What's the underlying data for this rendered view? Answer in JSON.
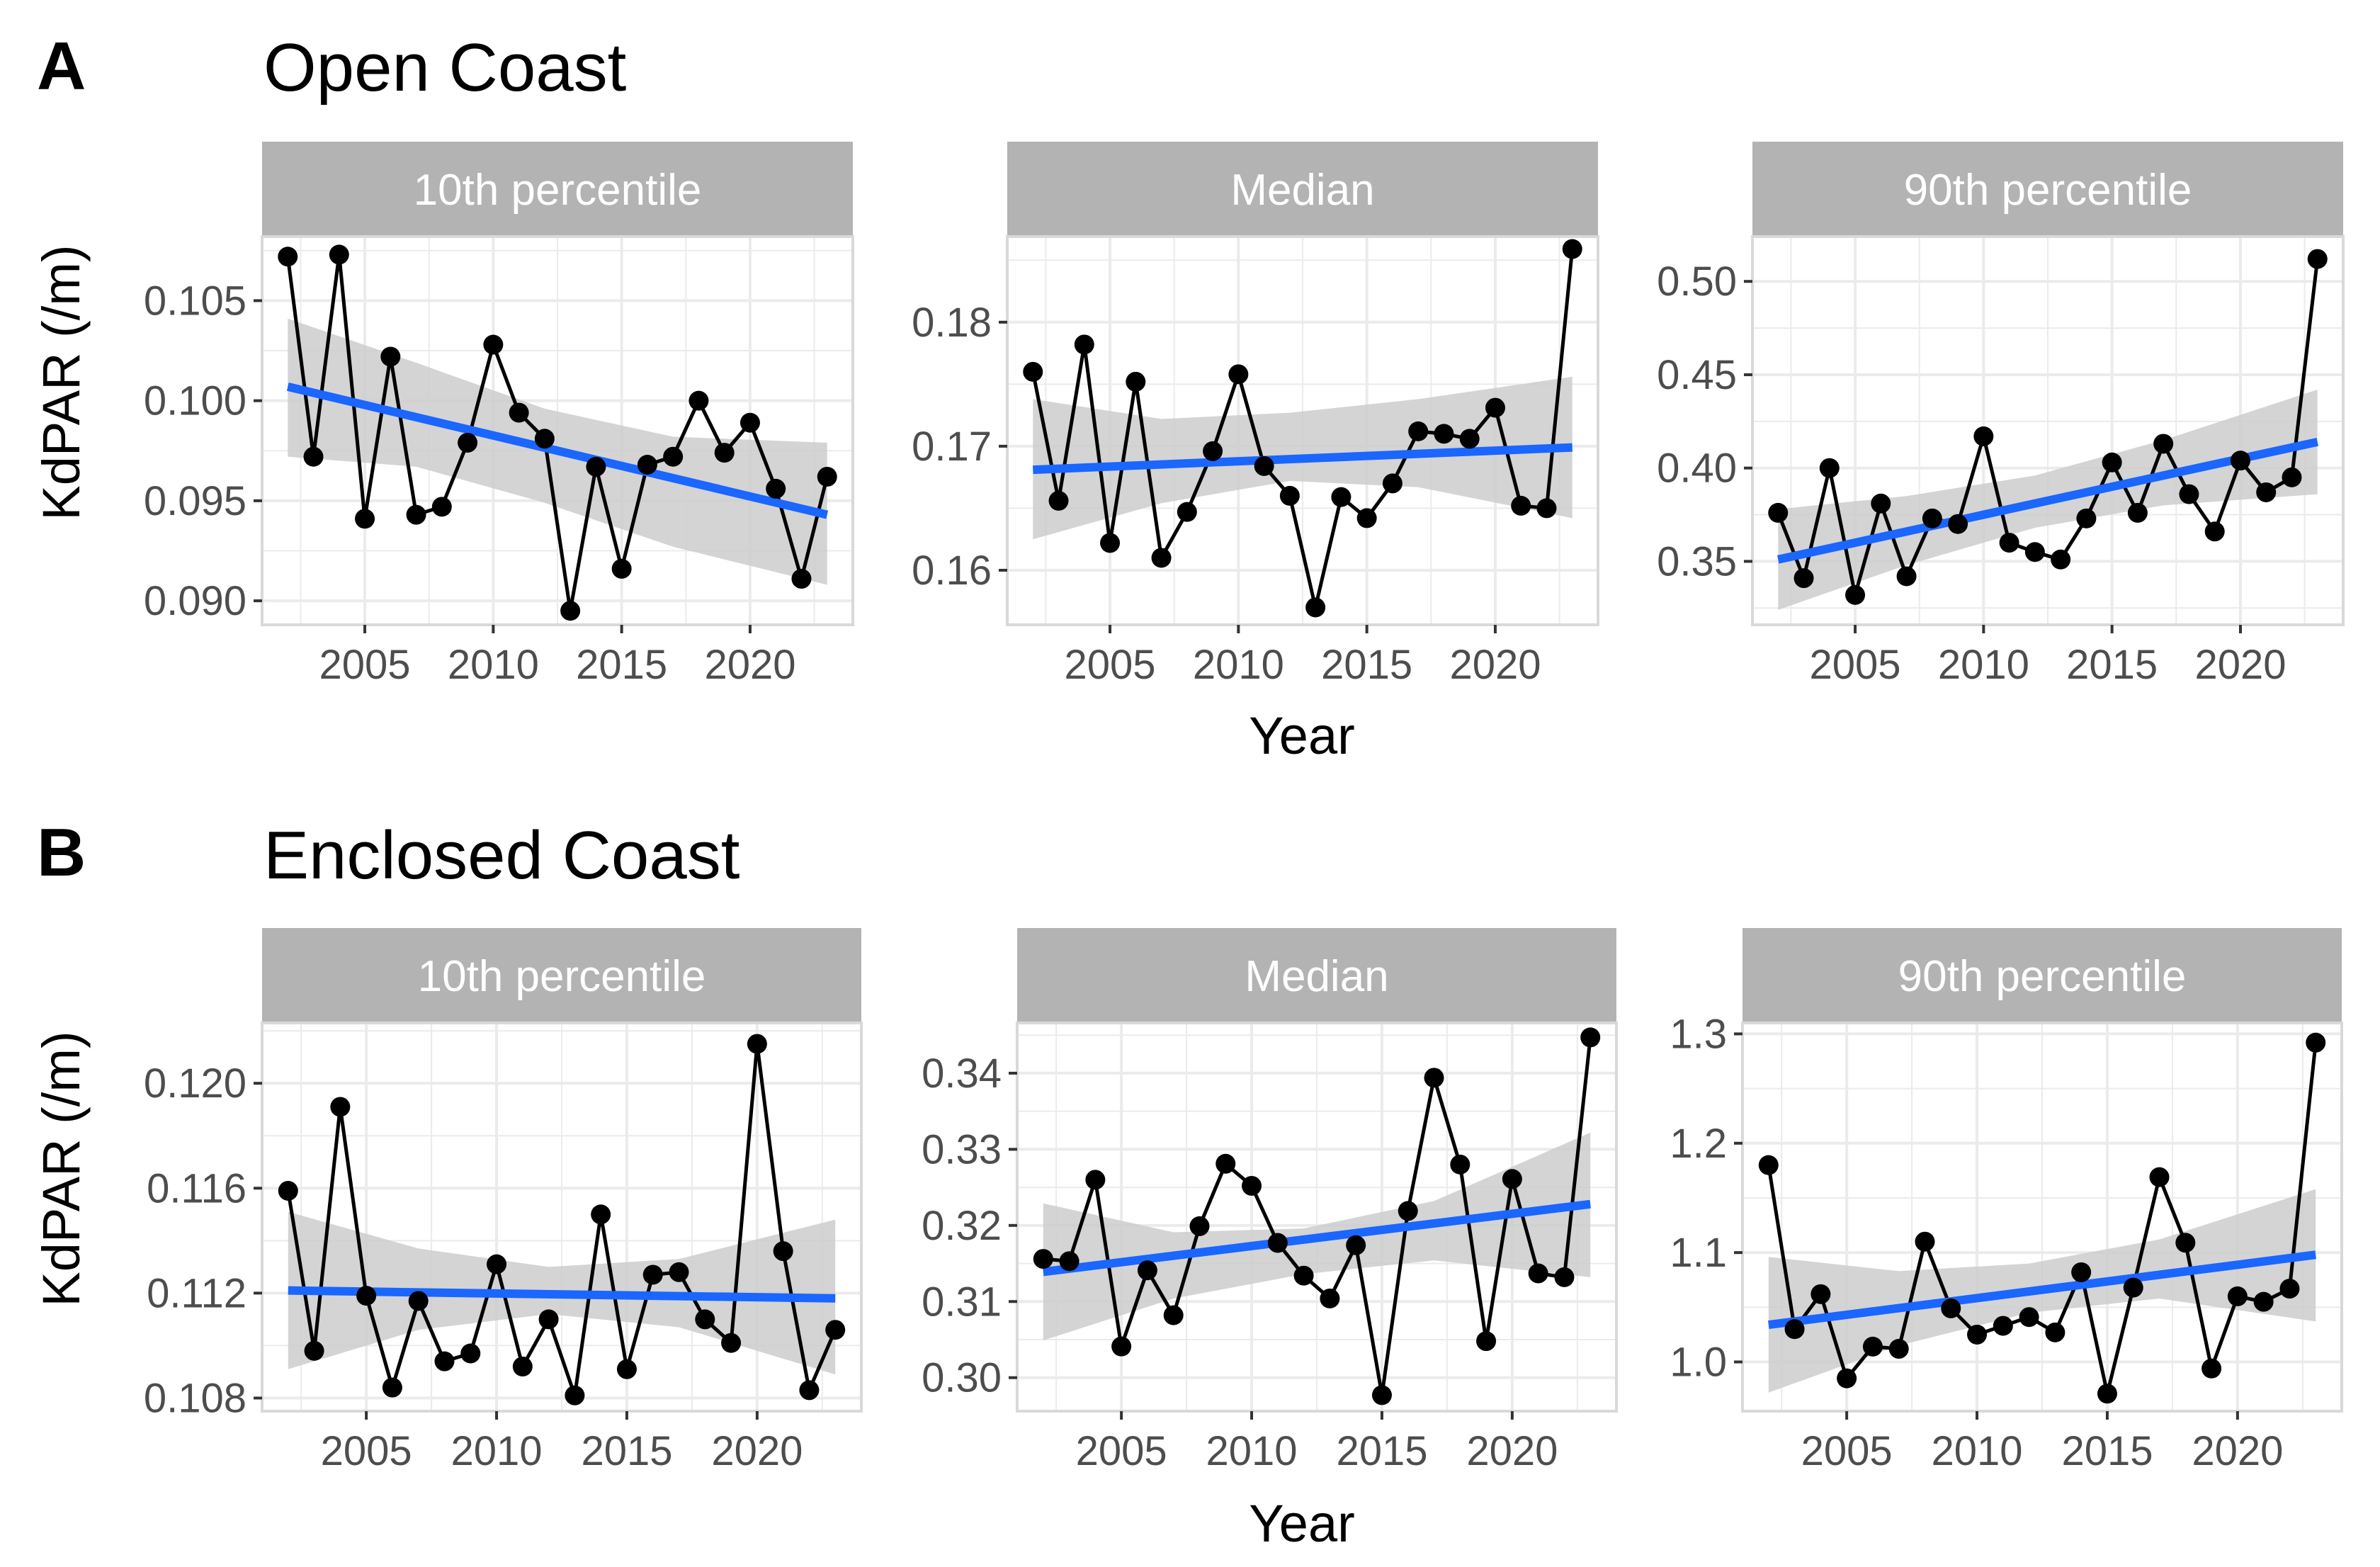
{
  "figure": {
    "y_axis_title": "KdPAR (/m)",
    "x_axis_title": "Year",
    "colors": {
      "trend": "#1a66ff",
      "ribbon": "#cccccc",
      "points": "#000000",
      "strip_bg": "#b3b3b3",
      "grid": "#ebebeb",
      "panel_border": "#d9d9d9"
    }
  },
  "chart_data": [
    {
      "section_letter": "A",
      "section_title": "Open Coast",
      "panel": "10th percentile",
      "type": "line",
      "xlabel": "",
      "ylabel": "KdPAR (/m)",
      "xlim": [
        2001,
        2024
      ],
      "ylim": [
        0.0888,
        0.1082
      ],
      "x_ticks": [
        2005,
        2010,
        2015,
        2020
      ],
      "y_ticks": [
        0.09,
        0.095,
        0.1,
        0.105
      ],
      "y_tick_labels": [
        "0.090",
        "0.095",
        "0.100",
        "0.105"
      ],
      "x": [
        2002,
        2003,
        2004,
        2005,
        2006,
        2007,
        2008,
        2009,
        2010,
        2011,
        2012,
        2013,
        2014,
        2015,
        2016,
        2017,
        2018,
        2019,
        2020,
        2021,
        2022,
        2023
      ],
      "values": [
        0.1072,
        0.0972,
        0.1073,
        0.0941,
        0.1022,
        0.0943,
        0.0947,
        0.0979,
        0.1028,
        0.0994,
        0.0981,
        0.0895,
        0.0967,
        0.0916,
        0.0968,
        0.0972,
        0.1,
        0.0974,
        0.0989,
        0.0956,
        0.0911,
        0.0962
      ],
      "trend": [
        0.1007,
        0.0943
      ],
      "ribbon_x": [
        2002,
        2007,
        2012,
        2017,
        2023
      ],
      "ribbon_lower": [
        0.0972,
        0.0967,
        0.0949,
        0.0927,
        0.0908
      ],
      "ribbon_upper": [
        0.1041,
        0.1019,
        0.0996,
        0.0982,
        0.0979
      ]
    },
    {
      "section_letter": "A",
      "section_title": "Open Coast",
      "panel": "Median",
      "type": "line",
      "xlabel": "Year",
      "ylabel": "",
      "xlim": [
        2001,
        2024
      ],
      "ylim": [
        0.1556,
        0.1869
      ],
      "x_ticks": [
        2005,
        2010,
        2015,
        2020
      ],
      "y_ticks": [
        0.16,
        0.17,
        0.18
      ],
      "y_tick_labels": [
        "0.16",
        "0.17",
        "0.18"
      ],
      "x": [
        2002,
        2003,
        2004,
        2005,
        2006,
        2007,
        2008,
        2009,
        2010,
        2011,
        2012,
        2013,
        2014,
        2015,
        2016,
        2017,
        2018,
        2019,
        2020,
        2021,
        2022,
        2023
      ],
      "values": [
        0.176,
        0.1656,
        0.1782,
        0.1622,
        0.1752,
        0.161,
        0.1647,
        0.1696,
        0.1758,
        0.1684,
        0.166,
        0.157,
        0.1659,
        0.1642,
        0.167,
        0.1712,
        0.171,
        0.1706,
        0.1731,
        0.1652,
        0.165,
        0.1859
      ],
      "trend": [
        0.1681,
        0.1699
      ],
      "ribbon_x": [
        2002,
        2007,
        2012,
        2017,
        2023
      ],
      "ribbon_lower": [
        0.1625,
        0.1654,
        0.1672,
        0.1667,
        0.1642
      ],
      "ribbon_upper": [
        0.1738,
        0.1722,
        0.1727,
        0.1738,
        0.1756
      ]
    },
    {
      "section_letter": "A",
      "section_title": "Open Coast",
      "panel": "90th percentile",
      "type": "line",
      "xlabel": "",
      "ylabel": "",
      "xlim": [
        2001,
        2024
      ],
      "ylim": [
        0.316,
        0.524
      ],
      "x_ticks": [
        2005,
        2010,
        2015,
        2020
      ],
      "y_ticks": [
        0.35,
        0.4,
        0.45,
        0.5
      ],
      "y_tick_labels": [
        "0.35",
        "0.40",
        "0.45",
        "0.50"
      ],
      "x": [
        2002,
        2003,
        2004,
        2005,
        2006,
        2007,
        2008,
        2009,
        2010,
        2011,
        2012,
        2013,
        2014,
        2015,
        2016,
        2017,
        2018,
        2019,
        2020,
        2021,
        2022,
        2023
      ],
      "values": [
        0.376,
        0.341,
        0.4,
        0.332,
        0.381,
        0.342,
        0.373,
        0.37,
        0.417,
        0.36,
        0.355,
        0.351,
        0.373,
        0.403,
        0.376,
        0.413,
        0.386,
        0.366,
        0.404,
        0.387,
        0.395,
        0.512
      ],
      "trend": [
        0.351,
        0.414
      ],
      "ribbon_x": [
        2002,
        2007,
        2012,
        2017,
        2023
      ],
      "ribbon_lower": [
        0.324,
        0.348,
        0.368,
        0.38,
        0.386
      ],
      "ribbon_upper": [
        0.378,
        0.385,
        0.396,
        0.415,
        0.442
      ]
    },
    {
      "section_letter": "B",
      "section_title": "Enclosed Coast",
      "panel": "10th percentile",
      "type": "line",
      "xlabel": "",
      "ylabel": "KdPAR (/m)",
      "xlim": [
        2001,
        2024
      ],
      "ylim": [
        0.1075,
        0.1223
      ],
      "x_ticks": [
        2005,
        2010,
        2015,
        2020
      ],
      "y_ticks": [
        0.108,
        0.112,
        0.116,
        0.12
      ],
      "y_tick_labels": [
        "0.108",
        "0.112",
        "0.116",
        "0.120"
      ],
      "x": [
        2002,
        2003,
        2004,
        2005,
        2006,
        2007,
        2008,
        2009,
        2010,
        2011,
        2012,
        2013,
        2014,
        2015,
        2016,
        2017,
        2018,
        2019,
        2020,
        2021,
        2022,
        2023
      ],
      "values": [
        0.1159,
        0.1098,
        0.1191,
        0.1119,
        0.1084,
        0.1117,
        0.1094,
        0.1097,
        0.1131,
        0.1092,
        0.111,
        0.1081,
        0.115,
        0.1091,
        0.1127,
        0.1128,
        0.111,
        0.1101,
        0.1215,
        0.1136,
        0.1083,
        0.1106
      ],
      "trend": [
        0.1121,
        0.1118
      ],
      "ribbon_x": [
        2002,
        2007,
        2012,
        2017,
        2023
      ],
      "ribbon_lower": [
        0.1091,
        0.1106,
        0.1112,
        0.1107,
        0.1089
      ],
      "ribbon_upper": [
        0.1151,
        0.1137,
        0.113,
        0.1133,
        0.1148
      ]
    },
    {
      "section_letter": "B",
      "section_title": "Enclosed Coast",
      "panel": "Median",
      "type": "line",
      "xlabel": "Year",
      "ylabel": "",
      "xlim": [
        2001,
        2024
      ],
      "ylim": [
        0.2956,
        0.3466
      ],
      "x_ticks": [
        2005,
        2010,
        2015,
        2020
      ],
      "y_ticks": [
        0.3,
        0.31,
        0.32,
        0.33,
        0.34
      ],
      "y_tick_labels": [
        "0.30",
        "0.31",
        "0.32",
        "0.33",
        "0.34"
      ],
      "x": [
        2002,
        2003,
        2004,
        2005,
        2006,
        2007,
        2008,
        2009,
        2010,
        2011,
        2012,
        2013,
        2014,
        2015,
        2016,
        2017,
        2018,
        2019,
        2020,
        2021,
        2022,
        2023
      ],
      "values": [
        0.3156,
        0.3153,
        0.326,
        0.3041,
        0.3141,
        0.3082,
        0.3199,
        0.3281,
        0.3252,
        0.3177,
        0.3134,
        0.3104,
        0.3174,
        0.2977,
        0.3219,
        0.3394,
        0.328,
        0.3048,
        0.3261,
        0.3137,
        0.3132,
        0.3447
      ],
      "trend": [
        0.3139,
        0.3228
      ],
      "ribbon_x": [
        2002,
        2007,
        2012,
        2017,
        2023
      ],
      "ribbon_lower": [
        0.3049,
        0.3104,
        0.3136,
        0.3154,
        0.3132
      ],
      "ribbon_upper": [
        0.3229,
        0.3191,
        0.3196,
        0.3232,
        0.3322
      ]
    },
    {
      "section_letter": "B",
      "section_title": "Enclosed Coast",
      "panel": "90th percentile",
      "type": "line",
      "xlabel": "",
      "ylabel": "",
      "xlim": [
        2001,
        2024
      ],
      "ylim": [
        0.955,
        1.31
      ],
      "x_ticks": [
        2005,
        2010,
        2015,
        2020
      ],
      "y_ticks": [
        1.0,
        1.1,
        1.2,
        1.3
      ],
      "y_tick_labels": [
        "1.0",
        "1.1",
        "1.2",
        "1.3"
      ],
      "x": [
        2002,
        2003,
        2004,
        2005,
        2006,
        2007,
        2008,
        2009,
        2010,
        2011,
        2012,
        2013,
        2014,
        2015,
        2016,
        2017,
        2018,
        2019,
        2020,
        2021,
        2022,
        2023
      ],
      "values": [
        1.18,
        1.03,
        1.062,
        0.985,
        1.014,
        1.012,
        1.11,
        1.049,
        1.025,
        1.033,
        1.041,
        1.027,
        1.082,
        0.971,
        1.068,
        1.169,
        1.109,
        0.994,
        1.06,
        1.055,
        1.067,
        1.292
      ],
      "trend": [
        1.034,
        1.098
      ],
      "ribbon_x": [
        2002,
        2007,
        2012,
        2017,
        2023
      ],
      "ribbon_lower": [
        0.972,
        1.015,
        1.045,
        1.058,
        1.037
      ],
      "ribbon_upper": [
        1.096,
        1.083,
        1.09,
        1.112,
        1.158
      ]
    }
  ]
}
